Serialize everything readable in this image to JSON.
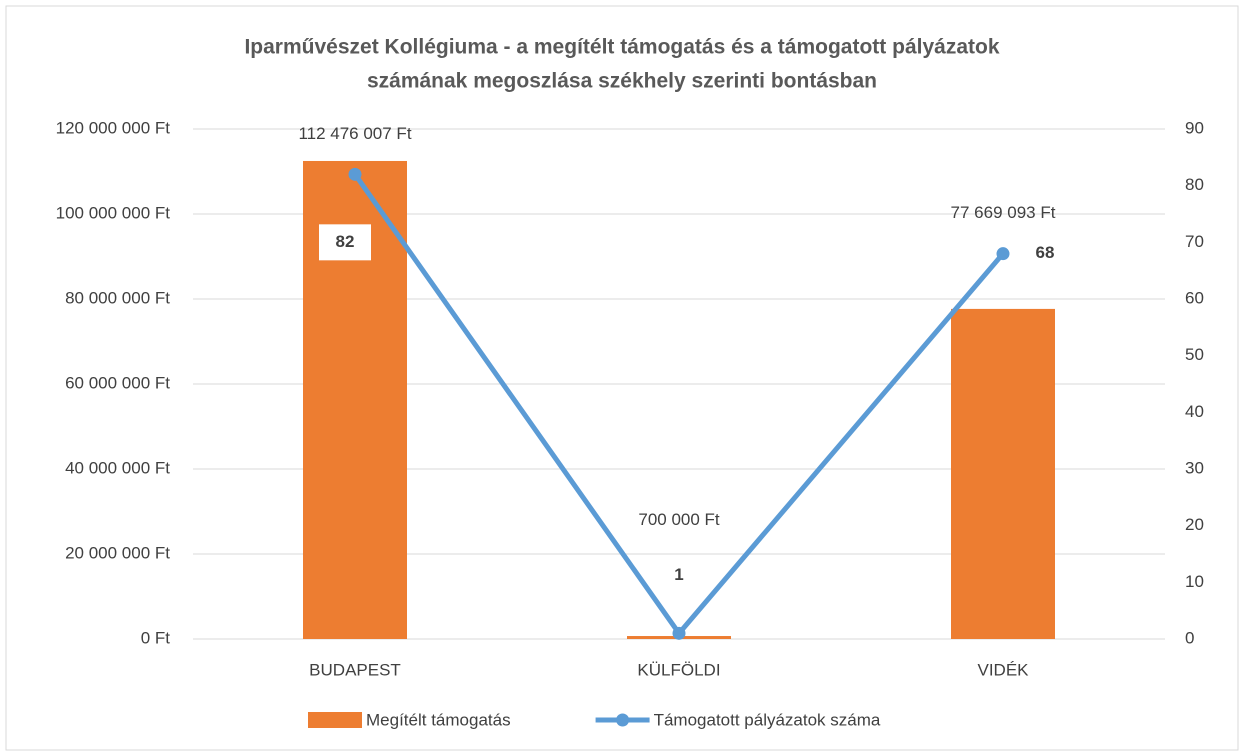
{
  "chart_data": {
    "type": "bar",
    "title": [
      "Iparművészet Kollégiuma - a megítélt támogatás és a támogatott pályázatok",
      "számának megoszlása székhely szerinti bontásban"
    ],
    "categories": [
      "BUDAPEST",
      "KÜLFÖLDI",
      "VIDÉK"
    ],
    "series": [
      {
        "name": "Megítélt támogatás",
        "type": "bar",
        "color": "#ED7D31",
        "values": [
          112476007,
          700000,
          77669093
        ],
        "value_labels": [
          "112 476 007 Ft",
          "700 000 Ft",
          "77 669 093 Ft"
        ]
      },
      {
        "name": "Támogatott pályázatok száma",
        "type": "line",
        "axis": "y2",
        "color": "#5B9BD5",
        "values": [
          82,
          1,
          68
        ]
      }
    ],
    "ylim": [
      0,
      120000000
    ],
    "yticks": [
      {
        "value": 0,
        "label": "0 Ft"
      },
      {
        "value": 20000000,
        "label": "20 000 000 Ft"
      },
      {
        "value": 40000000,
        "label": "40 000 000 Ft"
      },
      {
        "value": 60000000,
        "label": "60 000 000 Ft"
      },
      {
        "value": 80000000,
        "label": "80 000 000 Ft"
      },
      {
        "value": 100000000,
        "label": "100 000 000 Ft"
      },
      {
        "value": 120000000,
        "label": "120 000 000 Ft"
      }
    ],
    "y2lim": [
      0,
      90
    ],
    "y2ticks": [
      0,
      10,
      20,
      30,
      40,
      50,
      60,
      70,
      80,
      90
    ],
    "grid": true,
    "legend": "bottom"
  }
}
